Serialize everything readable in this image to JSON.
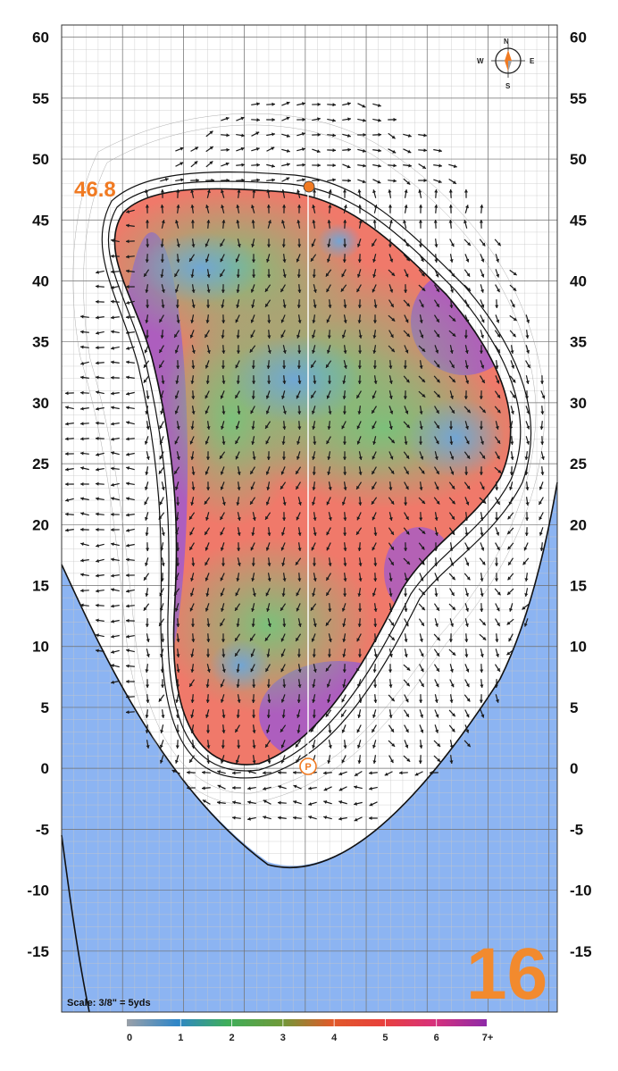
{
  "map": {
    "hole_number": "16",
    "elevation_label": "46.8",
    "scale_text": "Scale: 3/8\" = 5yds",
    "pin_marker_letter": "P",
    "compass": {
      "n": "N",
      "e": "E",
      "s": "S",
      "w": "W"
    },
    "y_axis_labels": [
      "60",
      "55",
      "50",
      "45",
      "40",
      "35",
      "30",
      "25",
      "20",
      "15",
      "10",
      "5",
      "0",
      "-5",
      "-10",
      "-15"
    ],
    "y_axis_values": [
      60,
      55,
      50,
      45,
      40,
      35,
      30,
      25,
      20,
      15,
      10,
      5,
      0,
      -5,
      -10,
      -15
    ],
    "y_range": [
      -20,
      61
    ],
    "legend": {
      "labels": [
        "0",
        "1",
        "2",
        "3",
        "4",
        "5",
        "6",
        "7+"
      ],
      "colors": [
        "#9aa0a8",
        "#2f86c8",
        "#3fae5a",
        "#6f9a3a",
        "#e05a2a",
        "#e8413c",
        "#d8327a",
        "#8e2aa8"
      ]
    },
    "slope_colors": {
      "low": "#6fa6d8",
      "mid": "#7cc07a",
      "high": "#f0796a",
      "steep": "#a55bc8",
      "water": "#8cb4f2"
    }
  }
}
